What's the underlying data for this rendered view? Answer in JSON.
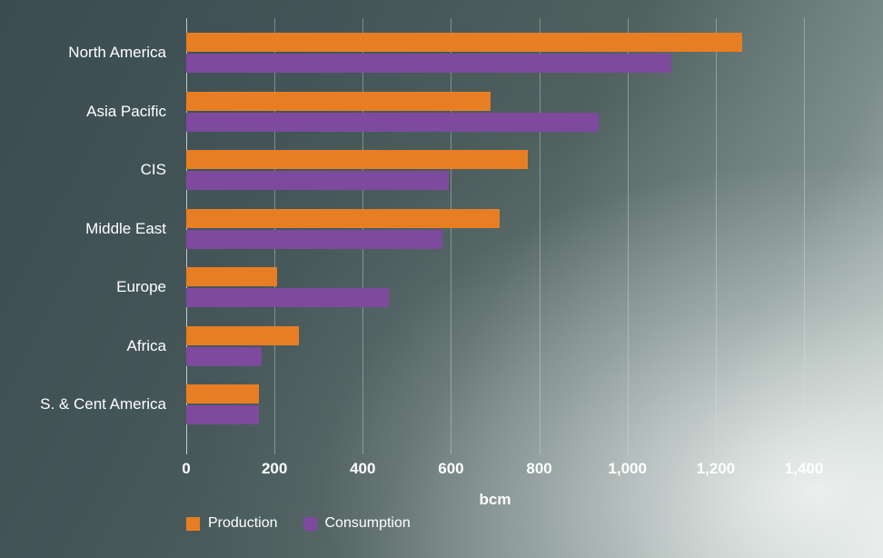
{
  "chart_data": {
    "type": "bar",
    "orientation": "horizontal",
    "title": "",
    "xlabel": "bcm",
    "ylabel": "",
    "xlim": [
      0,
      1400
    ],
    "grid": true,
    "legend_position": "bottom-left",
    "categories": [
      "North America",
      "Asia Pacific",
      "CIS",
      "Middle East",
      "Europe",
      "Africa",
      "S. & Cent America"
    ],
    "series": [
      {
        "name": "Production",
        "color": "#E87E24",
        "values": [
          1260,
          690,
          775,
          710,
          205,
          255,
          165
        ]
      },
      {
        "name": "Consumption",
        "color": "#7D4A9E",
        "values": [
          1100,
          935,
          595,
          580,
          460,
          170,
          165
        ]
      }
    ],
    "ticks": {
      "values": [
        0,
        200,
        400,
        600,
        800,
        1000,
        1200,
        1400
      ],
      "labels": [
        "0",
        "200",
        "400",
        "600",
        "800",
        "1,000",
        "1,200",
        "1,400"
      ]
    }
  },
  "colors": {
    "text": "#ffffff",
    "gridline": "rgba(215,226,226,0.40)"
  }
}
